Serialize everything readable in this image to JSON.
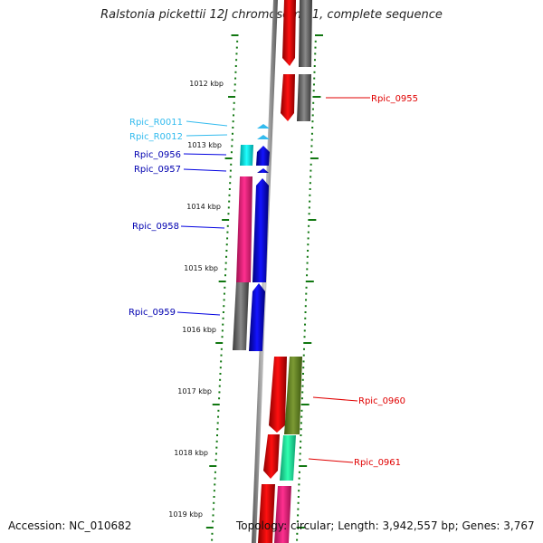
{
  "title": "Ralstonia pickettii 12J chromosome 1, complete sequence",
  "accession": "Accession: NC_010682",
  "stats": "Topology: circular; Length: 3,942,557 bp; Genes: 3,767",
  "ticks": [
    "1012 kbp",
    "1013 kbp",
    "1014 kbp",
    "1015 kbp",
    "1016 kbp",
    "1017 kbp",
    "1018 kbp",
    "1019 kbp"
  ],
  "gene_labels": {
    "rpic_0955": "Rpic_0955",
    "rpic_r0011": "Rpic_R0011",
    "rpic_r0012": "Rpic_R0012",
    "rpic_0956": "Rpic_0956",
    "rpic_0957": "Rpic_0957",
    "rpic_0958": "Rpic_0958",
    "rpic_0959": "Rpic_0959",
    "rpic_0960": "Rpic_0960",
    "rpic_0961": "Rpic_0961"
  },
  "colors": {
    "forward_cds": "#e00000",
    "reverse_cds": "#0000e0",
    "trna": "#33bbee",
    "tick": "#117711",
    "backbone": "#888888",
    "magenta": "#ff2a8a",
    "gray_feature": "#6e6e6e",
    "olive": "#6b8a2a",
    "teal": "#20e8a0",
    "cyan": "#00e8e8"
  }
}
